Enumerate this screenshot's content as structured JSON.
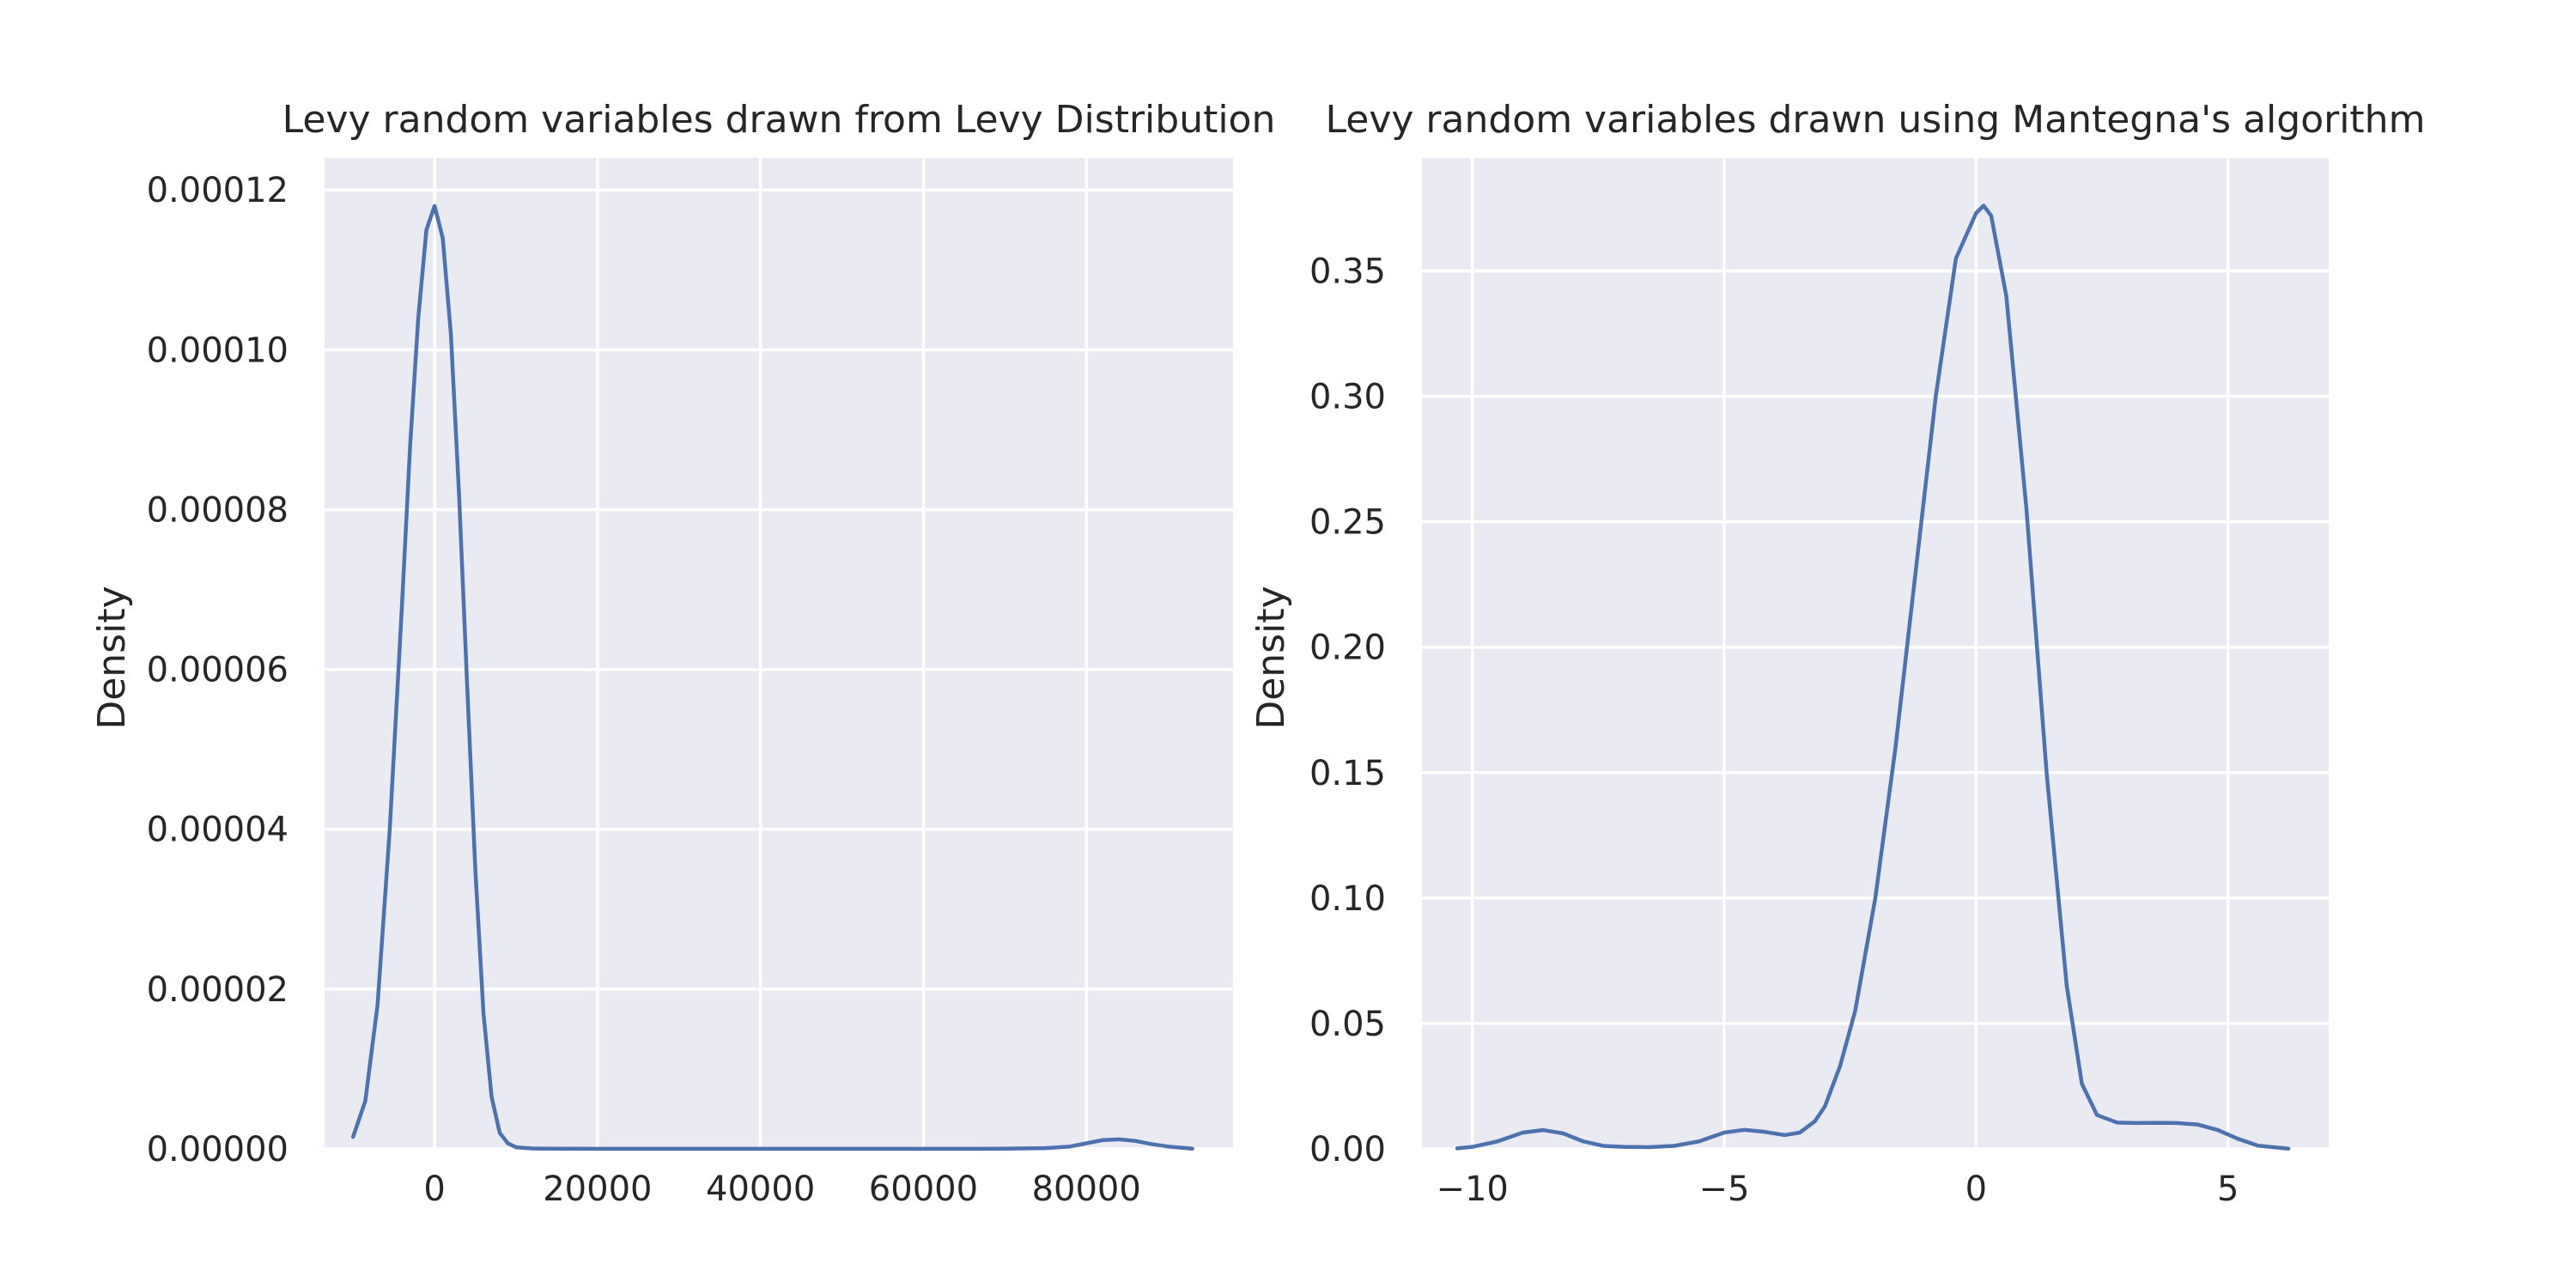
{
  "figure": {
    "background": "#ffffff",
    "plot_background": "#eaeaf2",
    "grid_color": "#ffffff",
    "line_color": "#4c72b0"
  },
  "chart_data": [
    {
      "type": "line",
      "title": "Levy random variables drawn from Levy Distribution",
      "xlabel": "",
      "ylabel": "Density",
      "xlim": [
        -13500,
        98000
      ],
      "ylim": [
        0,
        0.000124
      ],
      "grid": true,
      "xticks": [
        0,
        20000,
        40000,
        60000,
        80000
      ],
      "xtick_labels": [
        "0",
        "20000",
        "40000",
        "60000",
        "80000"
      ],
      "yticks": [
        0,
        2e-05,
        4e-05,
        6e-05,
        8e-05,
        0.0001,
        0.00012
      ],
      "ytick_labels": [
        "0.00000",
        "0.00002",
        "0.00004",
        "0.00006",
        "0.00008",
        "0.00010",
        "0.00012"
      ],
      "series": [
        {
          "x": [
            -10000,
            -8500,
            -7000,
            -5500,
            -4000,
            -3000,
            -2000,
            -1000,
            0,
            1000,
            2000,
            3000,
            4000,
            5000,
            6000,
            7000,
            8000,
            9000,
            10000,
            12000,
            15000,
            20000,
            30000,
            40000,
            50000,
            60000,
            70000,
            75000,
            78000,
            80000,
            82000,
            84000,
            86000,
            88000,
            90000,
            93000
          ],
          "y": [
            1.5e-06,
            6e-06,
            1.8e-05,
            4e-05,
            6.8e-05,
            8.8e-05,
            0.000104,
            0.000115,
            0.000118,
            0.000114,
            0.000102,
            8.2e-05,
            5.8e-05,
            3.5e-05,
            1.7e-05,
            6.5e-06,
            2e-06,
            7e-07,
            2e-07,
            5e-08,
            2e-08,
            1e-08,
            1e-08,
            1e-08,
            1e-08,
            1e-08,
            2e-08,
            1e-07,
            3e-07,
            7e-07,
            1.1e-06,
            1.2e-06,
            1e-06,
            6e-07,
            3e-07,
            3e-08
          ]
        }
      ]
    },
    {
      "type": "line",
      "title": "Levy random variables drawn using Mantegna's algorithm",
      "xlabel": "",
      "ylabel": "Density",
      "xlim": [
        -11,
        7
      ],
      "ylim": [
        0,
        0.395
      ],
      "grid": true,
      "xticks": [
        -10,
        -5,
        0,
        5
      ],
      "xtick_labels": [
        "−10",
        "−5",
        "0",
        "5"
      ],
      "yticks": [
        0,
        0.05,
        0.1,
        0.15,
        0.2,
        0.25,
        0.3,
        0.35
      ],
      "ytick_labels": [
        "0.00",
        "0.05",
        "0.10",
        "0.15",
        "0.20",
        "0.25",
        "0.30",
        "0.35"
      ],
      "series": [
        {
          "x": [
            -10.3,
            -10.0,
            -9.5,
            -9.0,
            -8.6,
            -8.2,
            -7.8,
            -7.4,
            -7.0,
            -6.5,
            -6.0,
            -5.5,
            -5.0,
            -4.6,
            -4.2,
            -3.8,
            -3.5,
            -3.2,
            -3.0,
            -2.7,
            -2.4,
            -2.0,
            -1.6,
            -1.2,
            -0.8,
            -0.4,
            0.0,
            0.15,
            0.3,
            0.6,
            1.0,
            1.4,
            1.8,
            2.1,
            2.4,
            2.8,
            3.2,
            3.6,
            4.0,
            4.4,
            4.8,
            5.2,
            5.6,
            6.2
          ],
          "y": [
            0.0002,
            0.0008,
            0.003,
            0.0065,
            0.0075,
            0.0062,
            0.003,
            0.0012,
            0.0008,
            0.0007,
            0.0012,
            0.003,
            0.0065,
            0.0076,
            0.0068,
            0.0055,
            0.0065,
            0.011,
            0.017,
            0.033,
            0.055,
            0.1,
            0.16,
            0.23,
            0.3,
            0.355,
            0.373,
            0.376,
            0.372,
            0.34,
            0.255,
            0.15,
            0.065,
            0.026,
            0.0135,
            0.0105,
            0.0103,
            0.0104,
            0.0103,
            0.0097,
            0.0075,
            0.004,
            0.0013,
            0.0001
          ]
        }
      ]
    }
  ]
}
